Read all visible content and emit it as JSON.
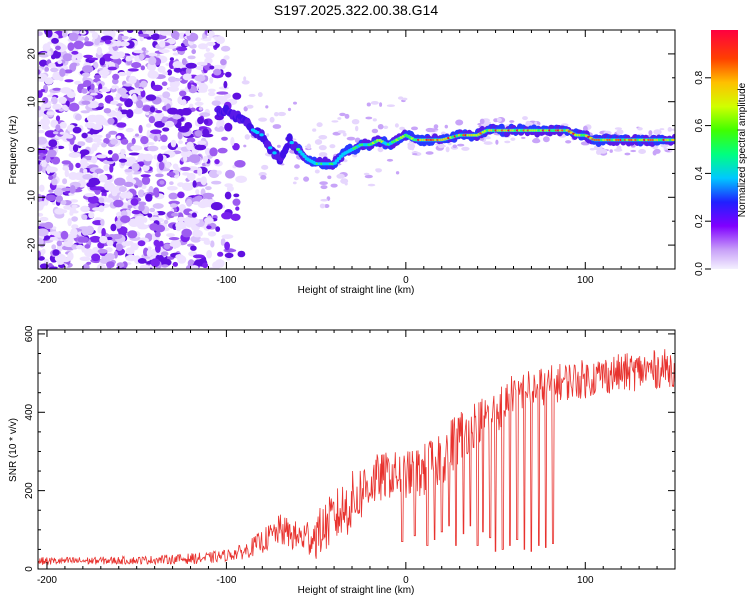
{
  "title": "S197.2025.322.00.38.G14",
  "colors": {
    "snr_line": "#e8322e",
    "frame": "#000000"
  },
  "chart_data": [
    {
      "type": "heatmap",
      "name": "spectrogram",
      "xlabel": "Height of straight line (km)",
      "ylabel": "Frequency (Hz)",
      "xlim": [
        -205,
        150
      ],
      "ylim": [
        -25,
        25
      ],
      "xticks": [
        -200,
        -100,
        0,
        100
      ],
      "yticks": [
        -20,
        -10,
        0,
        10,
        20
      ],
      "xtick_labels": [
        "-200",
        "-100",
        "0",
        "100"
      ],
      "ytick_labels": [
        "-20",
        "-10",
        "0",
        "10",
        "20"
      ],
      "ridge": {
        "x": [
          -100,
          -90,
          -85,
          -80,
          -75,
          -70,
          -65,
          -60,
          -55,
          -50,
          -45,
          -40,
          -35,
          -30,
          -25,
          -20,
          -15,
          -10,
          -5,
          0,
          5,
          10,
          20,
          30,
          40,
          45,
          50,
          60,
          70,
          80,
          90,
          95,
          100,
          105,
          110,
          120,
          130,
          140,
          150
        ],
        "y": [
          8,
          6,
          4,
          3,
          0,
          -2,
          2,
          0,
          -2,
          -3,
          -3,
          -3,
          -1,
          0,
          1,
          1,
          2,
          1,
          2,
          3,
          2,
          2,
          2,
          3,
          3,
          4,
          4,
          4,
          4,
          4,
          4,
          3,
          3,
          2,
          2,
          2,
          2,
          2,
          2
        ]
      },
      "colorbar": {
        "label": "Normalized spectral amplitude",
        "range": [
          0,
          1
        ],
        "ticks": [
          0.0,
          0.2,
          0.4,
          0.6,
          0.8
        ],
        "tick_labels": [
          "0.0",
          "0.2",
          "0.4",
          "0.6",
          "0.8"
        ]
      }
    },
    {
      "type": "line",
      "name": "snr",
      "xlabel": "Height of straight line (km)",
      "ylabel": "SNR (10 * v/v)",
      "xlim": [
        -205,
        150
      ],
      "ylim": [
        0,
        610
      ],
      "xticks": [
        -200,
        -100,
        0,
        100
      ],
      "yticks": [
        0,
        200,
        400,
        600
      ],
      "xtick_labels": [
        "-200",
        "-100",
        "0",
        "100"
      ],
      "ytick_labels": [
        "0",
        "200",
        "400",
        "600"
      ],
      "series": [
        {
          "name": "SNR",
          "x": [
            -205,
            -150,
            -110,
            -100,
            -90,
            -80,
            -70,
            -60,
            -50,
            -40,
            -30,
            -20,
            -10,
            0,
            10,
            20,
            30,
            40,
            50,
            60,
            70,
            80,
            90,
            100,
            110,
            120,
            130,
            140,
            150
          ],
          "mid": [
            20,
            22,
            28,
            35,
            45,
            70,
            100,
            80,
            85,
            130,
            170,
            220,
            240,
            240,
            250,
            290,
            340,
            380,
            400,
            450,
            460,
            470,
            480,
            485,
            495,
            500,
            505,
            510,
            515
          ],
          "amp": [
            10,
            10,
            15,
            15,
            20,
            30,
            40,
            40,
            60,
            70,
            80,
            70,
            60,
            60,
            70,
            80,
            70,
            60,
            60,
            50,
            50,
            50,
            50,
            50,
            50,
            50,
            50,
            50,
            50
          ]
        }
      ],
      "dropouts_x": [
        -2,
        5,
        12,
        16,
        20,
        24,
        28,
        32,
        36,
        40,
        43,
        47,
        50,
        54,
        58,
        62,
        66,
        70,
        74,
        78,
        82
      ],
      "dropouts_y": [
        70,
        85,
        60,
        75,
        95,
        110,
        60,
        90,
        110,
        60,
        95,
        80,
        45,
        50,
        60,
        75,
        50,
        45,
        60,
        55,
        65
      ]
    }
  ]
}
